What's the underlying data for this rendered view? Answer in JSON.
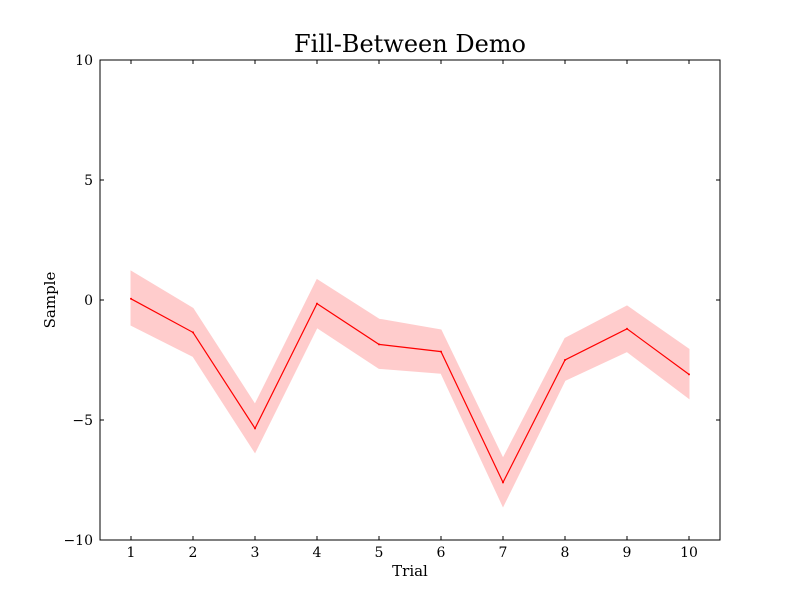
{
  "chart_data": {
    "type": "area",
    "title": "Fill-Between Demo",
    "xlabel": "Trial",
    "ylabel": "Sample",
    "xlim": [
      0.5,
      10.5
    ],
    "ylim": [
      -10,
      10
    ],
    "x": [
      1,
      2,
      3,
      4,
      5,
      6,
      7,
      8,
      9,
      10
    ],
    "xticks": [
      "1",
      "2",
      "3",
      "4",
      "5",
      "6",
      "7",
      "8",
      "9",
      "10"
    ],
    "yticks": [
      -10,
      -5,
      0,
      5,
      10
    ],
    "ytick_labels": [
      "−10",
      "−5",
      "0",
      "5",
      "10"
    ],
    "series": [
      {
        "values": [
          0.05,
          -1.35,
          -5.35,
          -0.15,
          -1.85,
          -2.15,
          -7.6,
          -2.5,
          -1.2,
          -3.1
        ],
        "lower": [
          -1.05,
          -2.35,
          -6.35,
          -1.15,
          -2.85,
          -3.05,
          -8.6,
          -3.35,
          -2.15,
          -4.1
        ],
        "upper": [
          1.2,
          -0.35,
          -4.35,
          0.85,
          -0.8,
          -1.25,
          -6.6,
          -1.6,
          -0.25,
          -2.05
        ],
        "color": "#ff0000",
        "fill_color": "#ffcccc"
      }
    ],
    "grid": false
  }
}
